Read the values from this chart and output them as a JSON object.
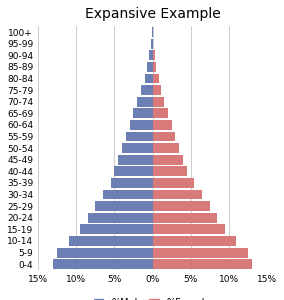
{
  "title": "Expansive Example",
  "age_groups": [
    "0-4",
    "5-9",
    "10-14",
    "15-19",
    "20-24",
    "25-29",
    "30-34",
    "35-39",
    "40-44",
    "45-49",
    "50-54",
    "55-59",
    "60-64",
    "65-69",
    "70-74",
    "75-79",
    "80-84",
    "85-89",
    "90-94",
    "95-99",
    "100+"
  ],
  "male": [
    13.0,
    12.5,
    11.0,
    9.5,
    8.5,
    7.5,
    6.5,
    5.5,
    5.0,
    4.5,
    4.0,
    3.5,
    3.0,
    2.5,
    2.0,
    1.5,
    1.0,
    0.7,
    0.5,
    0.2,
    0.1
  ],
  "female": [
    13.0,
    12.5,
    11.0,
    9.5,
    8.5,
    7.5,
    6.5,
    5.5,
    4.5,
    4.0,
    3.5,
    3.0,
    2.5,
    2.0,
    1.5,
    1.1,
    0.8,
    0.5,
    0.3,
    0.1,
    0.1
  ],
  "male_color": "#6b7fb5",
  "female_color": "#d97a7a",
  "xlim": 15,
  "background_color": "#ffffff",
  "grid_color": "#cccccc",
  "title_fontsize": 10,
  "tick_fontsize": 6.5,
  "legend_fontsize": 7,
  "bar_height": 0.85
}
